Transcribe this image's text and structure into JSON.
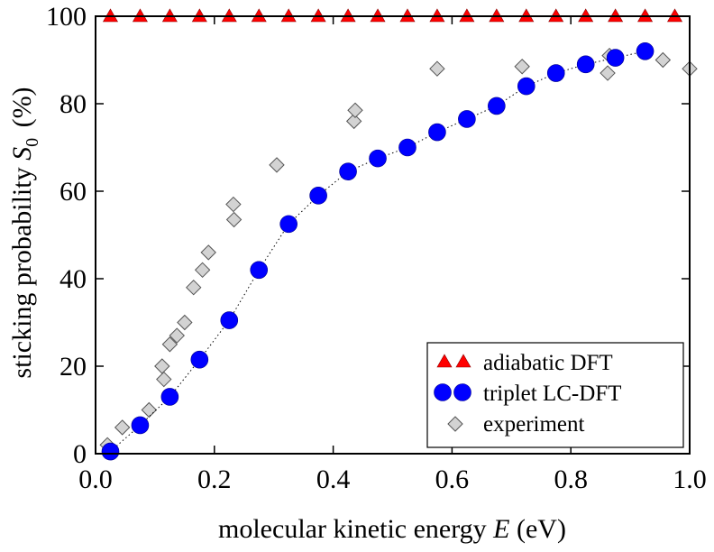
{
  "chart_data": {
    "type": "scatter",
    "xlabel_prefix": "molecular kinetic energy ",
    "xlabel_var": "E",
    "xlabel_suffix": " (eV)",
    "ylabel_prefix": "sticking probability ",
    "ylabel_var": "S",
    "ylabel_sub": "0",
    "ylabel_suffix": " (%)",
    "xlim": [
      0.0,
      1.0
    ],
    "ylim": [
      0,
      100
    ],
    "xticks": [
      "0.0",
      "0.2",
      "0.4",
      "0.6",
      "0.8",
      "1.0"
    ],
    "yticks": [
      "0",
      "20",
      "40",
      "60",
      "80",
      "100"
    ],
    "grid": false,
    "legend_position": "bottom-right",
    "series": [
      {
        "name": "adiabatic DFT",
        "marker": "triangle",
        "color": "#ff0000",
        "x": [
          0.025,
          0.075,
          0.125,
          0.175,
          0.225,
          0.275,
          0.325,
          0.375,
          0.425,
          0.475,
          0.525,
          0.575,
          0.625,
          0.675,
          0.725,
          0.775,
          0.825,
          0.875,
          0.925,
          0.975
        ],
        "y": [
          100,
          100,
          100,
          100,
          100,
          100,
          100,
          100,
          100,
          100,
          100,
          100,
          100,
          100,
          100,
          100,
          100,
          100,
          100,
          100
        ]
      },
      {
        "name": "triplet LC-DFT",
        "marker": "circle",
        "color": "#0000ff",
        "line": "dotted",
        "x": [
          0.025,
          0.075,
          0.125,
          0.175,
          0.225,
          0.275,
          0.325,
          0.375,
          0.425,
          0.475,
          0.525,
          0.575,
          0.625,
          0.675,
          0.725,
          0.775,
          0.825,
          0.875,
          0.925
        ],
        "y": [
          0.5,
          6.5,
          13,
          21.5,
          30.5,
          42,
          52.5,
          59,
          64.5,
          67.5,
          70,
          73.5,
          76.5,
          79.5,
          84,
          87,
          89,
          90.5,
          92
        ]
      },
      {
        "name": "experiment",
        "marker": "diamond",
        "color": "#d3d3d3",
        "x": [
          0.02,
          0.045,
          0.09,
          0.115,
          0.112,
          0.125,
          0.137,
          0.15,
          0.165,
          0.18,
          0.19,
          0.233,
          0.232,
          0.305,
          0.435,
          0.437,
          0.575,
          0.718,
          0.862,
          0.865,
          0.955,
          1.0
        ],
        "y": [
          2,
          6,
          10,
          17,
          20,
          25,
          27,
          30,
          38,
          42,
          46,
          53.5,
          57,
          66,
          76,
          78.5,
          88,
          88.5,
          87,
          91,
          90,
          88
        ]
      }
    ]
  }
}
